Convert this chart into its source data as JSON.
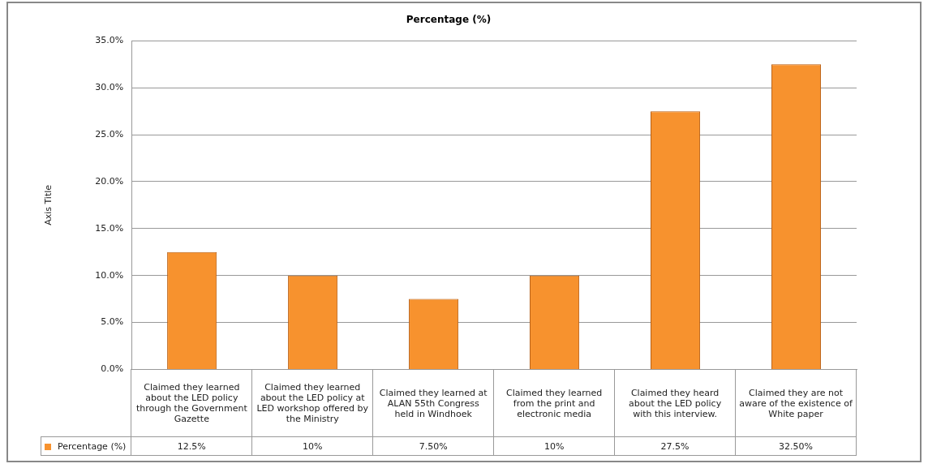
{
  "chart_data": {
    "type": "bar",
    "title": "Percentage (%)",
    "ylabel": "Axis Title",
    "categories": [
      "Claimed they learned about the LED policy through the Government Gazette",
      "Claimed they learned about the LED policy at LED workshop offered by the Ministry",
      "Claimed they learned at ALAN 55th Congress held in Windhoek",
      "Claimed they learned from the print and electronic media",
      "Claimed they heard about the LED policy with this interview.",
      "Claimed they are not aware of the existence of White paper"
    ],
    "series": [
      {
        "name": "Percentage (%)",
        "color": "#f7922e",
        "values": [
          12.5,
          10,
          7.5,
          10,
          27.5,
          32.5
        ],
        "value_labels": [
          "12.5%",
          "10%",
          "7.50%",
          "10%",
          "27.5%",
          "32.50%"
        ]
      }
    ],
    "ylim": [
      0,
      35
    ],
    "yticks": [
      {
        "value": 0,
        "label": "0.0%"
      },
      {
        "value": 5,
        "label": "5.0%"
      },
      {
        "value": 10,
        "label": "10.0%"
      },
      {
        "value": 15,
        "label": "15.0%"
      },
      {
        "value": 20,
        "label": "20.0%"
      },
      {
        "value": 25,
        "label": "25.0%"
      },
      {
        "value": 30,
        "label": "30.0%"
      },
      {
        "value": 35,
        "label": "35.0%"
      }
    ],
    "grid": "y"
  }
}
